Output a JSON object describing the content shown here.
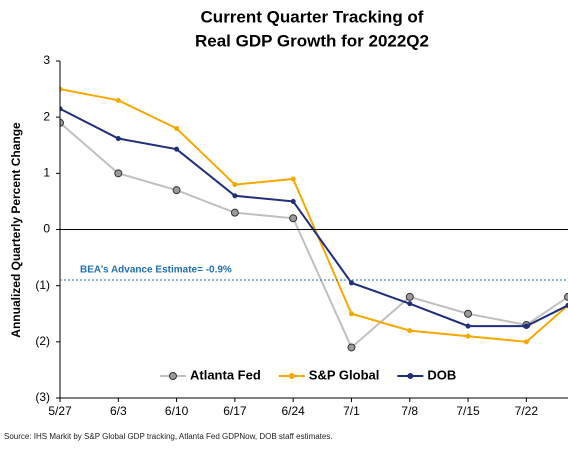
{
  "chart_data": {
    "type": "line",
    "title": [
      "Current Quarter Tracking of",
      "Real GDP Growth for 2022Q2"
    ],
    "ylabel": "Annualized Quarterly Percent Change",
    "x": [
      0,
      7,
      14,
      21,
      28,
      35,
      42,
      49,
      56,
      61
    ],
    "xlim": [
      0,
      61
    ],
    "xticks": [
      {
        "value": 0,
        "label": "5/27"
      },
      {
        "value": 7,
        "label": "6/3"
      },
      {
        "value": 14,
        "label": "6/10"
      },
      {
        "value": 21,
        "label": "6/17"
      },
      {
        "value": 28,
        "label": "6/24"
      },
      {
        "value": 35,
        "label": "7/1"
      },
      {
        "value": 42,
        "label": "7/8"
      },
      {
        "value": 49,
        "label": "7/15"
      },
      {
        "value": 56,
        "label": "7/22"
      }
    ],
    "ylim": [
      -3,
      3
    ],
    "yticks": [
      {
        "value": 3,
        "label": "3"
      },
      {
        "value": 2,
        "label": "2"
      },
      {
        "value": 1,
        "label": "1"
      },
      {
        "value": 0,
        "label": "0"
      },
      {
        "value": -1,
        "label": "(1)"
      },
      {
        "value": -2,
        "label": "(2)"
      },
      {
        "value": -3,
        "label": "(3)"
      }
    ],
    "series": [
      {
        "name": "Atlanta Fed",
        "color": "#bfbfbf",
        "marker_color": "#9a9a9a",
        "values": [
          1.9,
          1.0,
          0.7,
          0.3,
          0.2,
          -2.1,
          -1.2,
          -1.5,
          -1.7,
          -1.2
        ]
      },
      {
        "name": "S&P Global",
        "color": "#f5a800",
        "marker_color": "#f5a800",
        "values": [
          2.5,
          2.3,
          1.8,
          0.8,
          0.9,
          -1.5,
          -1.8,
          -1.9,
          -2.0,
          -1.35
        ]
      },
      {
        "name": "DOB",
        "color": "#1f2d7a",
        "marker_color": "#1f2d7a",
        "values": [
          2.15,
          1.62,
          1.43,
          0.6,
          0.5,
          -0.95,
          -1.32,
          -1.72,
          -1.72,
          -1.35
        ]
      }
    ],
    "reference": {
      "value": -0.9,
      "label": "BEA’s Advance Estimate= -0.9%",
      "color": "#1f6fb5"
    },
    "source": "Source: IHS Markit by S&P Global GDP tracking, Atlanta Fed GDPNow, DOB staff estimates."
  }
}
